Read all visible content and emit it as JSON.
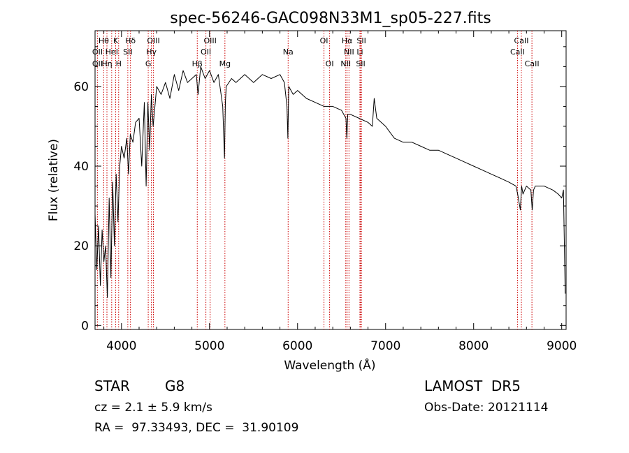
{
  "chart_data": {
    "type": "line",
    "title": "spec-56246-GAC098N33M1_sp05-227.fits",
    "xlabel": "Wavelength (Å)",
    "ylabel": "Flux (relative)",
    "xlim": [
      3700,
      9050
    ],
    "ylim": [
      -1,
      74
    ],
    "xticks": [
      4000,
      5000,
      6000,
      7000,
      8000,
      9000
    ],
    "yticks": [
      0,
      20,
      40,
      60
    ],
    "grid": false,
    "color": "#000000",
    "line_color": "#cc0000",
    "series": [
      {
        "x": [
          3700,
          3720,
          3740,
          3760,
          3780,
          3800,
          3820,
          3840,
          3860,
          3880,
          3900,
          3920,
          3940,
          3960,
          3980,
          4000,
          4030,
          4060,
          4080,
          4100,
          4130,
          4160,
          4200,
          4230,
          4260,
          4280,
          4300,
          4320,
          4340,
          4360,
          4400,
          4450,
          4500,
          4550,
          4600,
          4650,
          4700,
          4750,
          4800,
          4850,
          4870,
          4900,
          4950,
          5000,
          5050,
          5100,
          5150,
          5170,
          5180,
          5190,
          5250,
          5300,
          5400,
          5500,
          5600,
          5700,
          5800,
          5850,
          5880,
          5890,
          5900,
          5950,
          6000,
          6100,
          6200,
          6300,
          6400,
          6500,
          6550,
          6560,
          6570,
          6600,
          6700,
          6800,
          6850,
          6870,
          6900,
          7000,
          7100,
          7200,
          7300,
          7400,
          7500,
          7600,
          7700,
          7800,
          7900,
          8000,
          8100,
          8200,
          8300,
          8400,
          8480,
          8500,
          8530,
          8545,
          8560,
          8600,
          8650,
          8665,
          8680,
          8700,
          8800,
          8900,
          8960,
          9000,
          9020,
          9040
        ],
        "y": [
          28,
          14,
          25,
          10,
          24,
          16,
          20,
          7,
          32,
          12,
          36,
          20,
          38,
          26,
          40,
          45,
          42,
          47,
          38,
          48,
          46,
          51,
          52,
          40,
          56,
          35,
          56,
          44,
          58,
          50,
          60,
          58,
          61,
          57,
          63,
          59,
          64,
          61,
          62,
          63,
          58,
          65,
          62,
          64,
          61,
          63,
          55,
          42,
          56,
          60,
          62,
          61,
          63,
          61,
          63,
          62,
          63,
          61,
          55,
          47,
          60,
          58,
          59,
          57,
          56,
          55,
          55,
          54,
          52,
          47,
          53,
          53,
          52,
          51,
          50,
          57,
          52,
          50,
          47,
          46,
          46,
          45,
          44,
          44,
          43,
          42,
          41,
          40,
          39,
          38,
          37,
          36,
          35,
          33,
          29,
          35,
          33,
          35,
          34,
          29,
          34,
          35,
          35,
          34,
          33,
          32,
          34,
          8
        ]
      }
    ],
    "line_labels": [
      {
        "text": "Hθ",
        "x": 3798,
        "row": 0
      },
      {
        "text": "K",
        "x": 3934,
        "row": 0
      },
      {
        "text": "Hδ",
        "x": 4102,
        "row": 0
      },
      {
        "text": "OIII",
        "x": 4363,
        "row": 0
      },
      {
        "text": "OIII",
        "x": 5007,
        "row": 0
      },
      {
        "text": "OI",
        "x": 6300,
        "row": 0
      },
      {
        "text": "Hα",
        "x": 6563,
        "row": 0
      },
      {
        "text": "SII",
        "x": 6725,
        "row": 0
      },
      {
        "text": "CaII",
        "x": 8542,
        "row": 0
      },
      {
        "text": "OII",
        "x": 3727,
        "row": 1
      },
      {
        "text": "HeI",
        "x": 3889,
        "row": 1
      },
      {
        "text": "SII",
        "x": 4072,
        "row": 1
      },
      {
        "text": "Hγ",
        "x": 4340,
        "row": 1
      },
      {
        "text": "OII",
        "x": 4959,
        "row": 1
      },
      {
        "text": "Na",
        "x": 5893,
        "row": 1
      },
      {
        "text": "NII",
        "x": 6584,
        "row": 1
      },
      {
        "text": "Li",
        "x": 6708,
        "row": 1
      },
      {
        "text": "CaII",
        "x": 8498,
        "row": 1
      },
      {
        "text": "OII",
        "x": 3727,
        "row": 2
      },
      {
        "text": "Hη",
        "x": 3835,
        "row": 2
      },
      {
        "text": "H",
        "x": 3968,
        "row": 2
      },
      {
        "text": "G",
        "x": 4304,
        "row": 2
      },
      {
        "text": "Hβ",
        "x": 4861,
        "row": 2
      },
      {
        "text": "Mg",
        "x": 5175,
        "row": 2
      },
      {
        "text": "OI",
        "x": 6364,
        "row": 2
      },
      {
        "text": "NII",
        "x": 6548,
        "row": 2
      },
      {
        "text": "SII",
        "x": 6717,
        "row": 2
      },
      {
        "text": "CaII",
        "x": 8662,
        "row": 2
      }
    ],
    "line_positions": [
      3727,
      3798,
      3835,
      3889,
      3934,
      3968,
      4072,
      4102,
      4304,
      4340,
      4363,
      4861,
      4959,
      5007,
      5175,
      5893,
      6300,
      6364,
      6548,
      6563,
      6584,
      6708,
      6717,
      6725,
      8498,
      8542,
      8662
    ]
  },
  "info": {
    "class": "STAR",
    "subclass": "G8",
    "cz": "cz = 2.1 ± 5.9 km/s",
    "radec": "RA =  97.33493, DEC =  31.90109",
    "survey": "LAMOST  DR5",
    "obsdate": "Obs-Date: 20121114"
  }
}
